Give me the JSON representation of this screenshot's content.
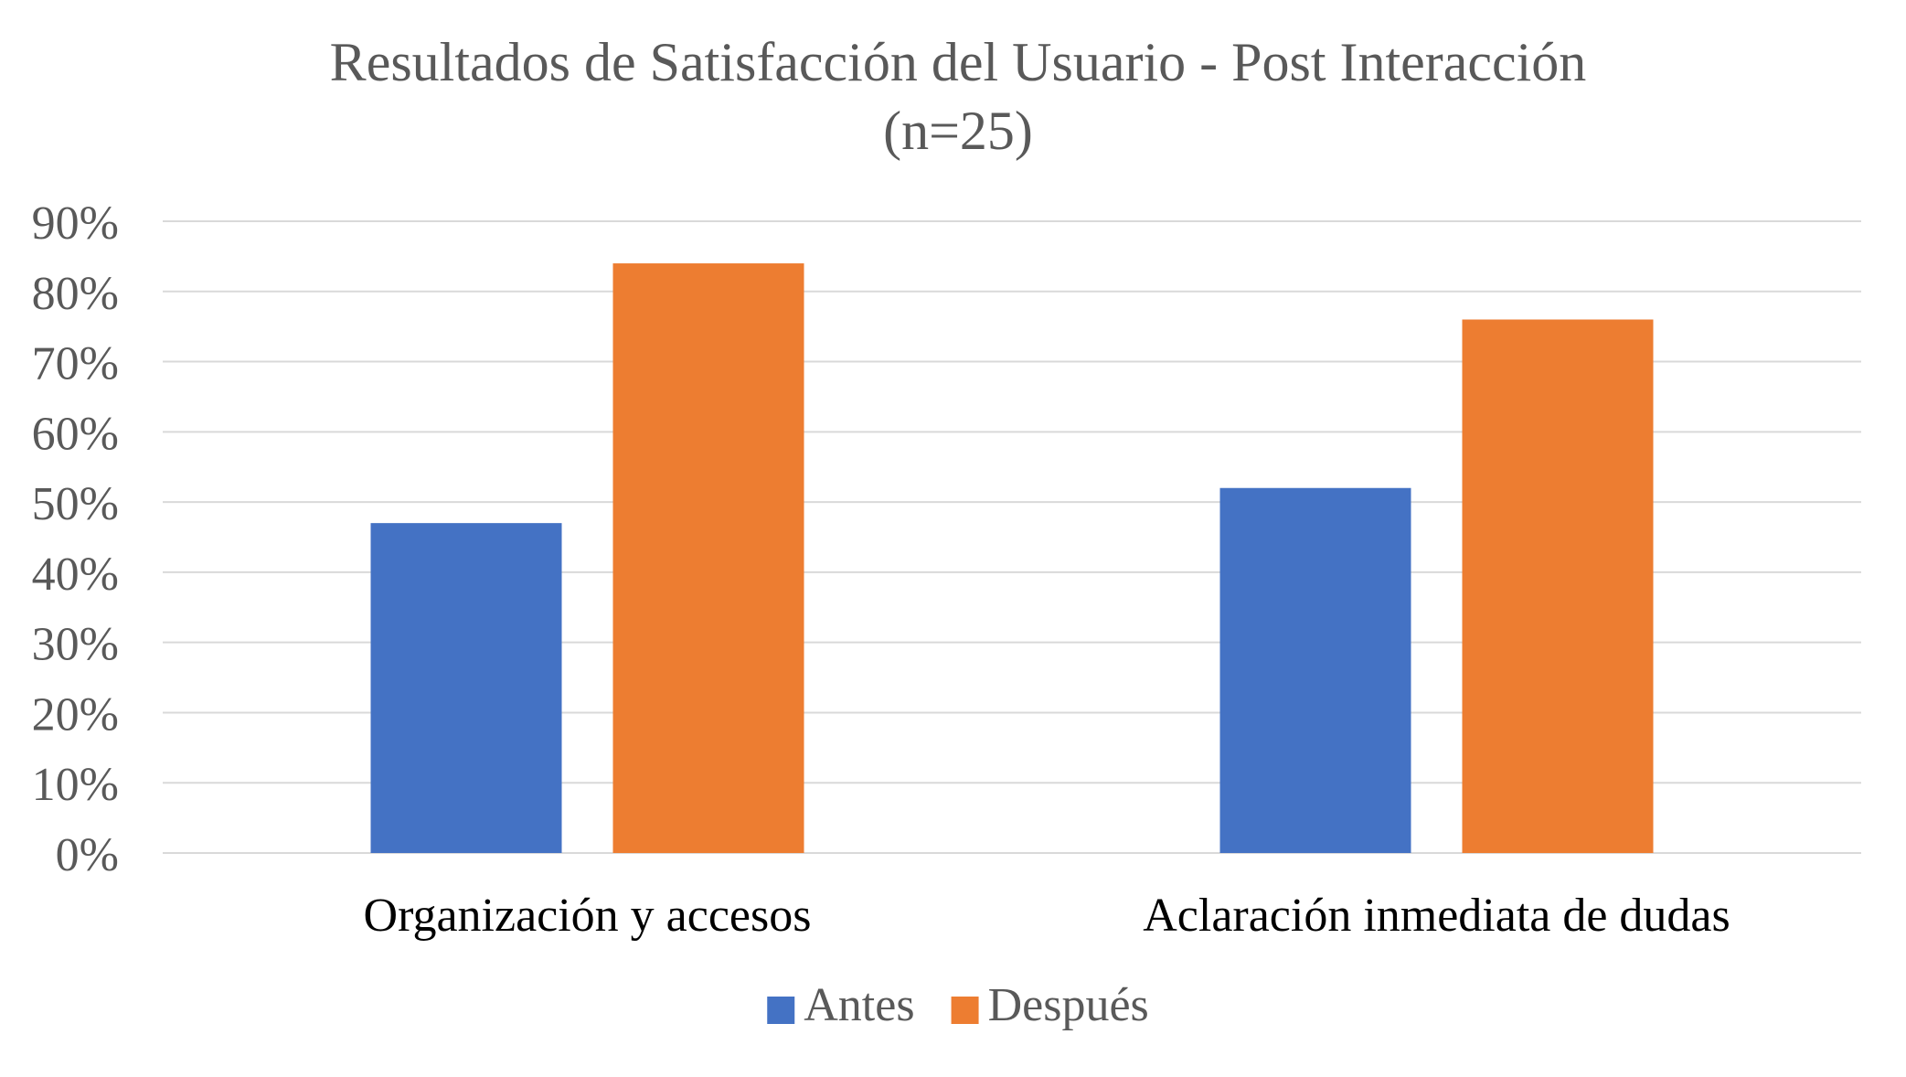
{
  "chart_data": {
    "type": "bar",
    "title": "Resultados de Satisfacción del Usuario - Post Interacción",
    "subtitle": "(n=25)",
    "categories": [
      "Organización y accesos",
      "Aclaración inmediata de dudas"
    ],
    "series": [
      {
        "name": "Antes",
        "values": [
          47,
          52
        ],
        "color": "#4472C4"
      },
      {
        "name": "Después",
        "values": [
          84,
          76
        ],
        "color": "#ED7D31"
      }
    ],
    "yticks": [
      "0%",
      "10%",
      "20%",
      "30%",
      "40%",
      "50%",
      "60%",
      "70%",
      "80%",
      "90%"
    ],
    "ylim": [
      0,
      90
    ],
    "ytick_step": 10,
    "grid": true,
    "legend_position": "bottom",
    "colors": {
      "gridline": "#D9D9D9",
      "title_text": "#595959",
      "axis_text": "#595959",
      "category_text": "#000000"
    }
  }
}
